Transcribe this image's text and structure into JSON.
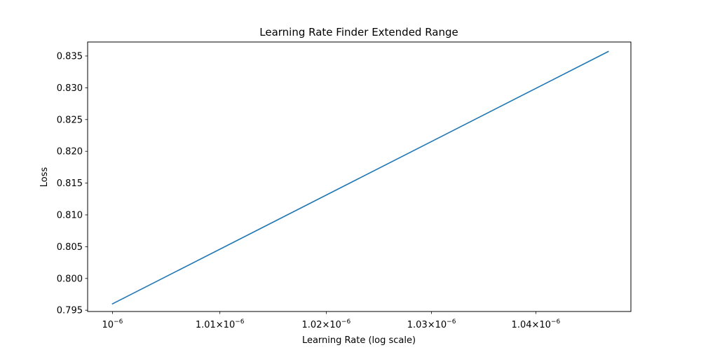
{
  "chart_data": {
    "type": "line",
    "title": "Learning Rate Finder Extended Range",
    "xlabel": "Learning Rate (log scale)",
    "ylabel": "Loss",
    "xscale": "log",
    "xlim": [
      9.977e-07,
      1.0492e-06
    ],
    "ylim": [
      0.7948,
      0.8372
    ],
    "grid": false,
    "series": [
      {
        "name": "loss",
        "color": "#1f77b4",
        "x": [
          1e-06,
          1.047e-06
        ],
        "y": [
          0.796,
          0.8357
        ]
      }
    ],
    "xticks": [
      {
        "value": 1e-06,
        "mantissa": "",
        "base": "10",
        "exponent": "−6"
      },
      {
        "value": 1.01e-06,
        "mantissa": "1.01×",
        "base": "10",
        "exponent": "−6"
      },
      {
        "value": 1.02e-06,
        "mantissa": "1.02×",
        "base": "10",
        "exponent": "−6"
      },
      {
        "value": 1.03e-06,
        "mantissa": "1.03×",
        "base": "10",
        "exponent": "−6"
      },
      {
        "value": 1.04e-06,
        "mantissa": "1.04×",
        "base": "10",
        "exponent": "−6"
      }
    ],
    "yticks": [
      {
        "value": 0.795,
        "label": "0.795"
      },
      {
        "value": 0.8,
        "label": "0.800"
      },
      {
        "value": 0.805,
        "label": "0.805"
      },
      {
        "value": 0.81,
        "label": "0.810"
      },
      {
        "value": 0.815,
        "label": "0.815"
      },
      {
        "value": 0.82,
        "label": "0.820"
      },
      {
        "value": 0.825,
        "label": "0.825"
      },
      {
        "value": 0.83,
        "label": "0.830"
      },
      {
        "value": 0.835,
        "label": "0.835"
      }
    ]
  }
}
